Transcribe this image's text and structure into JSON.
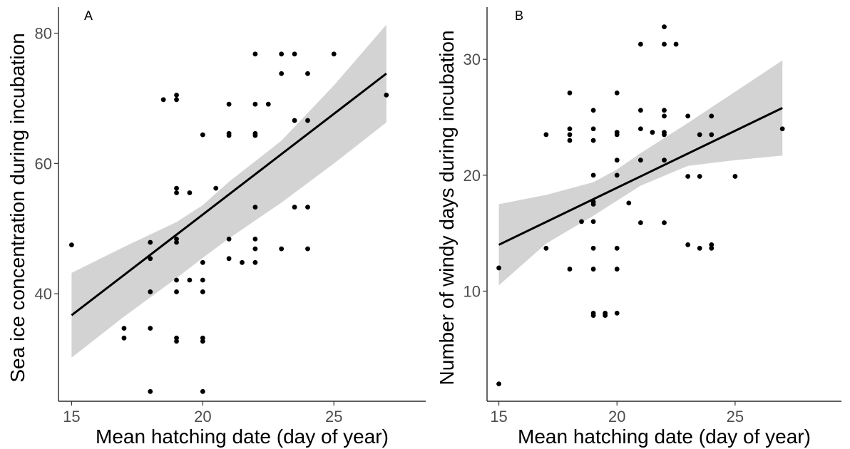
{
  "chart_data": [
    {
      "type": "scatter",
      "panel_label": "A",
      "xlabel": "Mean hatching date (day of year)",
      "ylabel": "Sea ice concentration during incubation",
      "xlim": [
        14.5,
        28.5
      ],
      "ylim": [
        23.5,
        84
      ],
      "xticks": [
        15,
        20,
        25
      ],
      "yticks": [
        40,
        60,
        80
      ],
      "grid": false,
      "legend": "none",
      "colors": {
        "points": "#000000",
        "fit_line": "#000000",
        "ci_band": "#d3d3d3"
      },
      "points": [
        [
          15,
          47.5
        ],
        [
          17,
          34.7
        ],
        [
          17,
          33.2
        ],
        [
          18,
          47.9
        ],
        [
          18,
          45.4
        ],
        [
          18,
          40.3
        ],
        [
          18,
          34.7
        ],
        [
          18,
          25.0
        ],
        [
          18.5,
          69.8
        ],
        [
          19,
          70.5
        ],
        [
          19,
          69.8
        ],
        [
          19,
          56.2
        ],
        [
          19,
          55.5
        ],
        [
          19,
          48.4
        ],
        [
          19,
          47.9
        ],
        [
          19,
          42.1
        ],
        [
          19,
          40.3
        ],
        [
          19,
          33.2
        ],
        [
          19,
          32.7
        ],
        [
          19.5,
          55.5
        ],
        [
          19.5,
          42.1
        ],
        [
          20,
          64.4
        ],
        [
          20,
          44.8
        ],
        [
          20,
          42.1
        ],
        [
          20,
          40.3
        ],
        [
          20,
          33.2
        ],
        [
          20,
          32.7
        ],
        [
          20,
          25.0
        ],
        [
          20.5,
          56.2
        ],
        [
          21,
          69.1
        ],
        [
          21,
          64.6
        ],
        [
          21,
          64.3
        ],
        [
          21,
          48.4
        ],
        [
          21,
          45.4
        ],
        [
          21.5,
          44.8
        ],
        [
          22,
          76.8
        ],
        [
          22,
          69.1
        ],
        [
          22,
          64.6
        ],
        [
          22,
          64.3
        ],
        [
          22,
          53.3
        ],
        [
          22,
          48.4
        ],
        [
          22,
          46.9
        ],
        [
          22,
          44.8
        ],
        [
          22.5,
          69.1
        ],
        [
          23,
          76.8
        ],
        [
          23,
          73.8
        ],
        [
          23,
          46.9
        ],
        [
          23.5,
          76.8
        ],
        [
          23.5,
          66.6
        ],
        [
          23.5,
          53.3
        ],
        [
          24,
          73.8
        ],
        [
          24,
          66.6
        ],
        [
          24,
          53.3
        ],
        [
          24,
          46.9
        ],
        [
          25,
          76.8
        ],
        [
          27,
          70.5
        ]
      ],
      "fit": {
        "x": [
          15,
          27
        ],
        "y": [
          36.7,
          73.8
        ]
      },
      "ci_band": {
        "x": [
          15,
          17,
          19,
          20,
          21,
          23,
          25,
          27
        ],
        "lower": [
          30.2,
          36.5,
          42.4,
          45.5,
          48.5,
          54.0,
          60.0,
          66.3
        ],
        "upper": [
          43.2,
          47.2,
          51.0,
          53.6,
          57.2,
          63.5,
          72.0,
          81.3
        ]
      }
    },
    {
      "type": "scatter",
      "panel_label": "B",
      "xlabel": "Mean hatching date (day of year)",
      "ylabel": "Number of windy days during incubation",
      "xlim": [
        14.5,
        29.5
      ],
      "ylim": [
        0.5,
        34.5
      ],
      "xticks": [
        15,
        20,
        25
      ],
      "yticks": [
        10,
        20,
        30
      ],
      "grid": false,
      "legend": "none",
      "colors": {
        "points": "#000000",
        "fit_line": "#000000",
        "ci_band": "#d3d3d3"
      },
      "points": [
        [
          15,
          12.0
        ],
        [
          15,
          2.0
        ],
        [
          17,
          23.5
        ],
        [
          17,
          13.7
        ],
        [
          18,
          27.1
        ],
        [
          18,
          24.0
        ],
        [
          18,
          23.5
        ],
        [
          18,
          23.0
        ],
        [
          18,
          11.9
        ],
        [
          18.5,
          16.0
        ],
        [
          19,
          25.6
        ],
        [
          19,
          24.0
        ],
        [
          19,
          23.0
        ],
        [
          19,
          20.0
        ],
        [
          19,
          17.7
        ],
        [
          19,
          17.5
        ],
        [
          19,
          16.0
        ],
        [
          19,
          13.7
        ],
        [
          19,
          11.9
        ],
        [
          19,
          8.1
        ],
        [
          19,
          7.9
        ],
        [
          19.5,
          8.1
        ],
        [
          19.5,
          7.9
        ],
        [
          20,
          27.1
        ],
        [
          20,
          23.7
        ],
        [
          20,
          23.5
        ],
        [
          20,
          21.3
        ],
        [
          20,
          20.0
        ],
        [
          20,
          13.7
        ],
        [
          20,
          11.9
        ],
        [
          20,
          8.1
        ],
        [
          20.5,
          17.6
        ],
        [
          21,
          31.3
        ],
        [
          21,
          25.6
        ],
        [
          21,
          24.0
        ],
        [
          21,
          21.3
        ],
        [
          21,
          15.9
        ],
        [
          21.5,
          23.7
        ],
        [
          22,
          32.8
        ],
        [
          22,
          31.3
        ],
        [
          22,
          25.6
        ],
        [
          22,
          25.1
        ],
        [
          22,
          23.7
        ],
        [
          22,
          23.5
        ],
        [
          22,
          21.3
        ],
        [
          22,
          15.9
        ],
        [
          22.5,
          31.3
        ],
        [
          23,
          25.1
        ],
        [
          23,
          19.9
        ],
        [
          23,
          14.0
        ],
        [
          23.5,
          23.5
        ],
        [
          23.5,
          19.9
        ],
        [
          23.5,
          13.7
        ],
        [
          24,
          25.1
        ],
        [
          24,
          23.5
        ],
        [
          24,
          14.0
        ],
        [
          24,
          13.7
        ],
        [
          25,
          19.9
        ],
        [
          27,
          24.0
        ]
      ],
      "fit": {
        "x": [
          15,
          27
        ],
        "y": [
          14.0,
          25.8
        ]
      },
      "ci_band": {
        "x": [
          15,
          17,
          19,
          20,
          21,
          23,
          25,
          27
        ],
        "lower": [
          10.5,
          14.1,
          16.5,
          17.8,
          19.1,
          20.8,
          21.3,
          21.7
        ],
        "upper": [
          17.5,
          18.3,
          19.4,
          20.5,
          21.9,
          24.5,
          27.2,
          29.9
        ]
      }
    }
  ]
}
